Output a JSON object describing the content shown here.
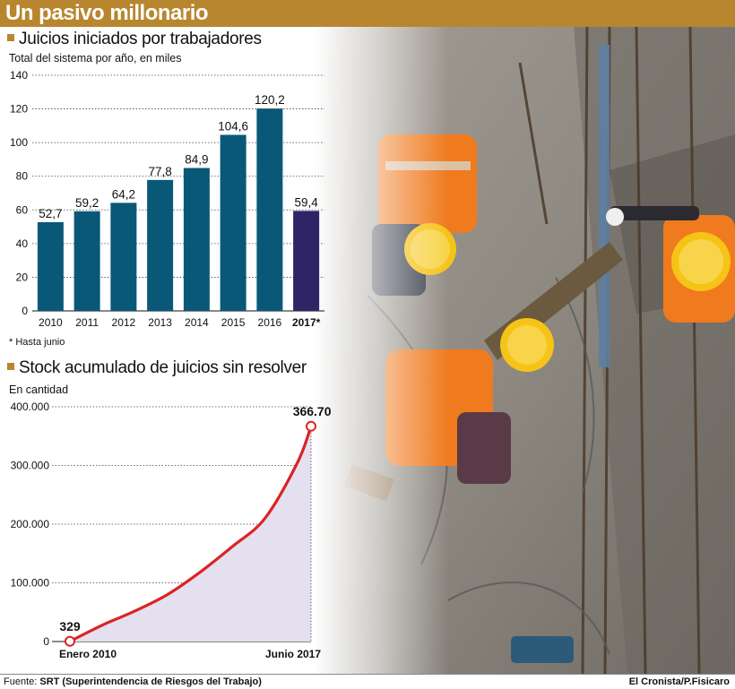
{
  "banner": {
    "title": "Un pasivo millonario",
    "color": "#b8862e"
  },
  "bar_section": {
    "title": "Juicios iniciados por trabajadores",
    "subtitle": "Total del sistema por año, en miles",
    "note": "* Hasta junio"
  },
  "line_section": {
    "title": "Stock acumulado de juicios sin resolver",
    "subtitle": "En cantidad"
  },
  "footer": {
    "source_label": "Fuente:",
    "source_text": "SRT (Superintendencia de Riesgos del Trabajo)",
    "credit": "El Cronista/P.Fisicaro"
  },
  "colors": {
    "bar": "#0a5878",
    "bar_highlight": "#2e2466",
    "line": "#d92424",
    "area": "#e4e0ef"
  },
  "photo": {
    "description_icon": "construction-workers-photo"
  },
  "chart_data": [
    {
      "type": "bar",
      "categories": [
        "2010",
        "2011",
        "2012",
        "2013",
        "2014",
        "2015",
        "2016",
        "2017*"
      ],
      "values": [
        52.7,
        59.2,
        64.2,
        77.8,
        84.9,
        104.6,
        120.2,
        59.4
      ],
      "value_labels": [
        "52,7",
        "59,2",
        "64,2",
        "77,8",
        "84,9",
        "104,6",
        "120,2",
        "59,4"
      ],
      "title": "Juicios iniciados por trabajadores",
      "ylabel": "Total del sistema por año, en miles",
      "ylim": [
        0,
        140
      ],
      "yticks": [
        0,
        20,
        40,
        60,
        80,
        100,
        120,
        140
      ],
      "ytick_labels": [
        "0",
        "20",
        "40",
        "60",
        "80",
        "100",
        "120",
        "140"
      ],
      "highlight_category": "2017*",
      "grid": true
    },
    {
      "type": "area",
      "title": "Stock acumulado de juicios sin resolver",
      "ylabel": "En cantidad",
      "x_labels": [
        "Enero 2010",
        "Junio 2017"
      ],
      "x": [
        "2010-01",
        "2011-01",
        "2012-01",
        "2013-01",
        "2014-01",
        "2015-01",
        "2016-01",
        "2017-01",
        "2017-06"
      ],
      "values": [
        329,
        28000,
        52000,
        80000,
        118000,
        162000,
        210000,
        305000,
        366707
      ],
      "start_label": "329",
      "end_label": "366.707",
      "ylim": [
        0,
        400000
      ],
      "yticks": [
        0,
        100000,
        200000,
        300000,
        400000
      ],
      "ytick_labels": [
        "0",
        "100.000",
        "200.000",
        "300.000",
        "400.000"
      ],
      "grid": true
    }
  ]
}
